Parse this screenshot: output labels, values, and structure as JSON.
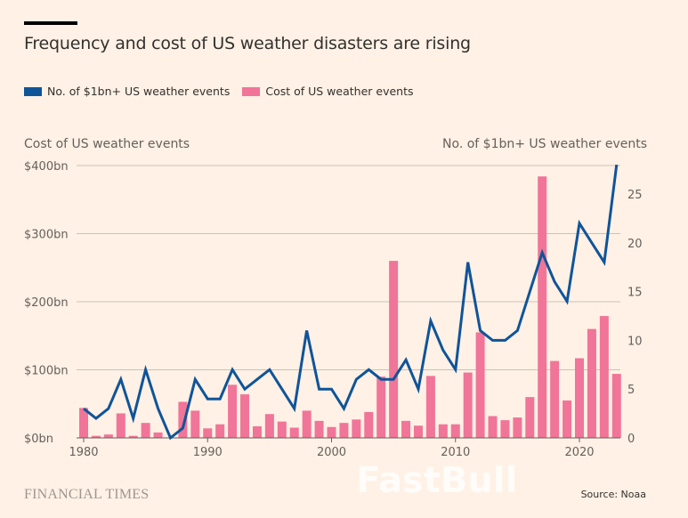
{
  "title": "Frequency and cost of US weather disasters are rising",
  "legend": [
    {
      "label": "No. of $1bn+ US weather events",
      "color": "#0f5499"
    },
    {
      "label": "Cost of US weather events",
      "color": "#f07599"
    }
  ],
  "source": "Source: Noaa",
  "publisher": "FINANCIAL TIMES",
  "watermark": "FastBull",
  "chart_data": {
    "type": "bar+line",
    "title": "Frequency and cost of US weather disasters are rising",
    "x": [
      1980,
      1981,
      1982,
      1983,
      1984,
      1985,
      1986,
      1987,
      1988,
      1989,
      1990,
      1991,
      1992,
      1993,
      1994,
      1995,
      1996,
      1997,
      1998,
      1999,
      2000,
      2001,
      2002,
      2003,
      2004,
      2005,
      2006,
      2007,
      2008,
      2009,
      2010,
      2011,
      2012,
      2013,
      2014,
      2015,
      2016,
      2017,
      2018,
      2019,
      2020,
      2021,
      2022,
      2023
    ],
    "x_ticks": [
      "1980",
      "1990",
      "2000",
      "2010",
      "2020"
    ],
    "ylabel_left": "Cost of US weather events",
    "ylabel_right": "No. of $1bn+ US weather events",
    "ylim_left": [
      0,
      400
    ],
    "ylim_right": [
      0,
      28
    ],
    "y_ticks_left": [
      "$0bn",
      "$100bn",
      "$200bn",
      "$300bn",
      "$400bn"
    ],
    "y_ticks_right": [
      "0",
      "5",
      "10",
      "15",
      "20",
      "25"
    ],
    "grid": true,
    "legend_position": "top-left",
    "series": [
      {
        "name": "Cost of US weather events",
        "type": "bar",
        "axis": "left",
        "unit": "$bn",
        "color": "#f07599",
        "values": [
          44,
          3,
          5,
          36,
          3,
          22,
          8,
          0,
          53,
          40,
          14,
          20,
          78,
          64,
          17,
          35,
          24,
          15,
          40,
          25,
          16,
          22,
          27,
          38,
          90,
          260,
          25,
          18,
          91,
          20,
          20,
          96,
          155,
          32,
          26,
          30,
          60,
          384,
          113,
          55,
          117,
          160,
          179,
          94
        ]
      },
      {
        "name": "No. of $1bn+ US weather events",
        "type": "line",
        "axis": "right",
        "color": "#0f5499",
        "values": [
          3,
          2,
          3,
          6,
          2,
          7,
          3,
          0,
          1,
          6,
          4,
          4,
          7,
          5,
          6,
          7,
          5,
          3,
          11,
          5,
          5,
          3,
          6,
          7,
          6,
          6,
          8,
          5,
          12,
          9,
          7,
          18,
          11,
          10,
          10,
          11,
          15,
          19,
          16,
          14,
          22,
          20,
          18,
          28
        ]
      }
    ]
  }
}
